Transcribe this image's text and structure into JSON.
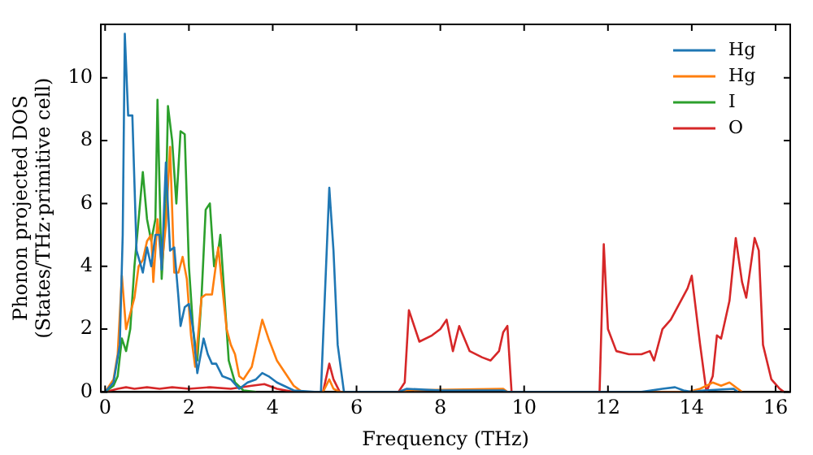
{
  "chart_data": {
    "type": "line",
    "xlabel": "Frequency (THz)",
    "ylabel": "Phonon projected DOS\n(States/THz·primitive cell)",
    "xlim": [
      -0.1,
      16.35
    ],
    "xticks": [
      0,
      2,
      4,
      6,
      8,
      10,
      12,
      14,
      16
    ],
    "ylim": [
      0,
      11.7
    ],
    "yticks": [
      0,
      2,
      4,
      6,
      8,
      10
    ],
    "grid": false,
    "legend": "top right",
    "marker": "none",
    "line_style": "solid",
    "series": [
      {
        "name": "Hg",
        "color": "#1f77b4",
        "x": [
          0,
          0.2,
          0.35,
          0.42,
          0.47,
          0.55,
          0.65,
          0.75,
          0.9,
          1.0,
          1.1,
          1.2,
          1.3,
          1.35,
          1.45,
          1.55,
          1.65,
          1.75,
          1.8,
          1.9,
          2.0,
          2.1,
          2.2,
          2.35,
          2.45,
          2.55,
          2.65,
          2.8,
          3.0,
          3.2,
          3.4,
          3.6,
          3.75,
          3.9,
          4.1,
          4.5,
          5.0,
          5.15,
          5.35,
          5.45,
          5.55,
          5.7,
          7.0,
          7.2,
          8.0,
          9.5,
          9.6,
          12.8,
          13.3,
          13.6,
          13.8,
          14.0,
          14.3,
          15.0,
          15.1
        ],
        "values": [
          0,
          0.3,
          1.5,
          5,
          11.4,
          8.8,
          8.8,
          4.5,
          3.8,
          4.6,
          4.0,
          5.0,
          5.0,
          3.9,
          7.3,
          4.5,
          4.6,
          3.0,
          2.1,
          2.7,
          2.8,
          2.0,
          0.6,
          1.7,
          1.2,
          0.9,
          0.9,
          0.5,
          0.4,
          0.1,
          0.3,
          0.4,
          0.6,
          0.5,
          0.3,
          0.05,
          0,
          0,
          6.5,
          4.5,
          1.5,
          0,
          0,
          0.1,
          0.05,
          0.05,
          0,
          0,
          0.1,
          0.15,
          0.05,
          0,
          0.05,
          0.1,
          0
        ]
      },
      {
        "name": "Hg",
        "color": "#ff7f0e",
        "x": [
          0,
          0.2,
          0.3,
          0.4,
          0.5,
          0.6,
          0.7,
          0.8,
          0.9,
          1.0,
          1.1,
          1.15,
          1.25,
          1.35,
          1.45,
          1.55,
          1.65,
          1.75,
          1.85,
          1.95,
          2.05,
          2.15,
          2.3,
          2.4,
          2.55,
          2.7,
          2.8,
          2.9,
          3.0,
          3.1,
          3.2,
          3.3,
          3.5,
          3.65,
          3.75,
          3.9,
          4.1,
          4.3,
          4.5,
          4.7,
          5.2,
          5.35,
          5.45,
          5.6,
          7.0,
          7.2,
          9.5,
          9.6,
          13.9,
          14.2,
          14.5,
          14.7,
          14.9,
          15.1,
          15.2
        ],
        "values": [
          0,
          0.4,
          1.2,
          3.7,
          2.0,
          2.5,
          3.0,
          4.0,
          4.2,
          4.8,
          5.0,
          3.5,
          5.5,
          4.0,
          5.3,
          7.8,
          3.8,
          3.8,
          4.3,
          3.6,
          1.8,
          0.8,
          3.0,
          3.1,
          3.1,
          4.6,
          3.3,
          2.0,
          1.5,
          1.2,
          0.5,
          0.4,
          0.8,
          1.7,
          2.3,
          1.7,
          1.0,
          0.6,
          0.2,
          0,
          0,
          0.4,
          0.1,
          0,
          0,
          0.05,
          0.1,
          0,
          0,
          0.1,
          0.3,
          0.2,
          0.3,
          0.1,
          0
        ]
      },
      {
        "name": "I",
        "color": "#2ca02c",
        "x": [
          0,
          0.2,
          0.3,
          0.4,
          0.5,
          0.6,
          0.7,
          0.8,
          0.9,
          1.0,
          1.1,
          1.2,
          1.25,
          1.35,
          1.45,
          1.5,
          1.6,
          1.7,
          1.8,
          1.9,
          2.0,
          2.1,
          2.2,
          2.3,
          2.4,
          2.5,
          2.6,
          2.7,
          2.75,
          2.85,
          2.95,
          3.1,
          3.3,
          3.6
        ],
        "values": [
          0,
          0.2,
          0.5,
          1.7,
          1.3,
          2.0,
          4.0,
          5.5,
          7.0,
          5.5,
          4.8,
          5.5,
          9.3,
          3.6,
          6.0,
          9.1,
          8.0,
          6.0,
          8.3,
          8.2,
          4.0,
          2.0,
          1.0,
          3.0,
          5.8,
          6.0,
          4.0,
          4.5,
          5.0,
          3.0,
          1.0,
          0.3,
          0.05,
          0
        ]
      },
      {
        "name": "O",
        "color": "#d62728",
        "x": [
          0,
          0.3,
          0.5,
          0.7,
          1.0,
          1.3,
          1.6,
          2.0,
          2.5,
          3.0,
          3.5,
          3.8,
          4.1,
          4.5,
          5.2,
          5.35,
          5.45,
          5.6,
          7.0,
          7.15,
          7.25,
          7.5,
          7.8,
          8.0,
          8.15,
          8.3,
          8.45,
          8.7,
          9.0,
          9.2,
          9.4,
          9.5,
          9.6,
          9.7,
          11.8,
          11.9,
          12.0,
          12.2,
          12.5,
          12.8,
          13.0,
          13.1,
          13.3,
          13.5,
          13.7,
          13.9,
          14.0,
          14.2,
          14.35,
          14.5,
          14.6,
          14.7,
          14.9,
          15.05,
          15.2,
          15.3,
          15.5,
          15.6,
          15.7,
          15.9,
          16.1,
          16.2
        ],
        "values": [
          0,
          0.1,
          0.15,
          0.1,
          0.15,
          0.1,
          0.15,
          0.1,
          0.15,
          0.1,
          0.2,
          0.25,
          0.1,
          0,
          0,
          0.9,
          0.4,
          0,
          0,
          0.3,
          2.6,
          1.6,
          1.8,
          2.0,
          2.3,
          1.3,
          2.1,
          1.3,
          1.1,
          1.0,
          1.3,
          1.9,
          2.1,
          0,
          0,
          4.7,
          2.0,
          1.3,
          1.2,
          1.2,
          1.3,
          1.0,
          2.0,
          2.3,
          2.8,
          3.3,
          3.7,
          1.5,
          0,
          0.5,
          1.8,
          1.7,
          2.9,
          4.9,
          3.5,
          3.0,
          4.9,
          4.5,
          1.5,
          0.4,
          0.1,
          0
        ]
      }
    ]
  }
}
